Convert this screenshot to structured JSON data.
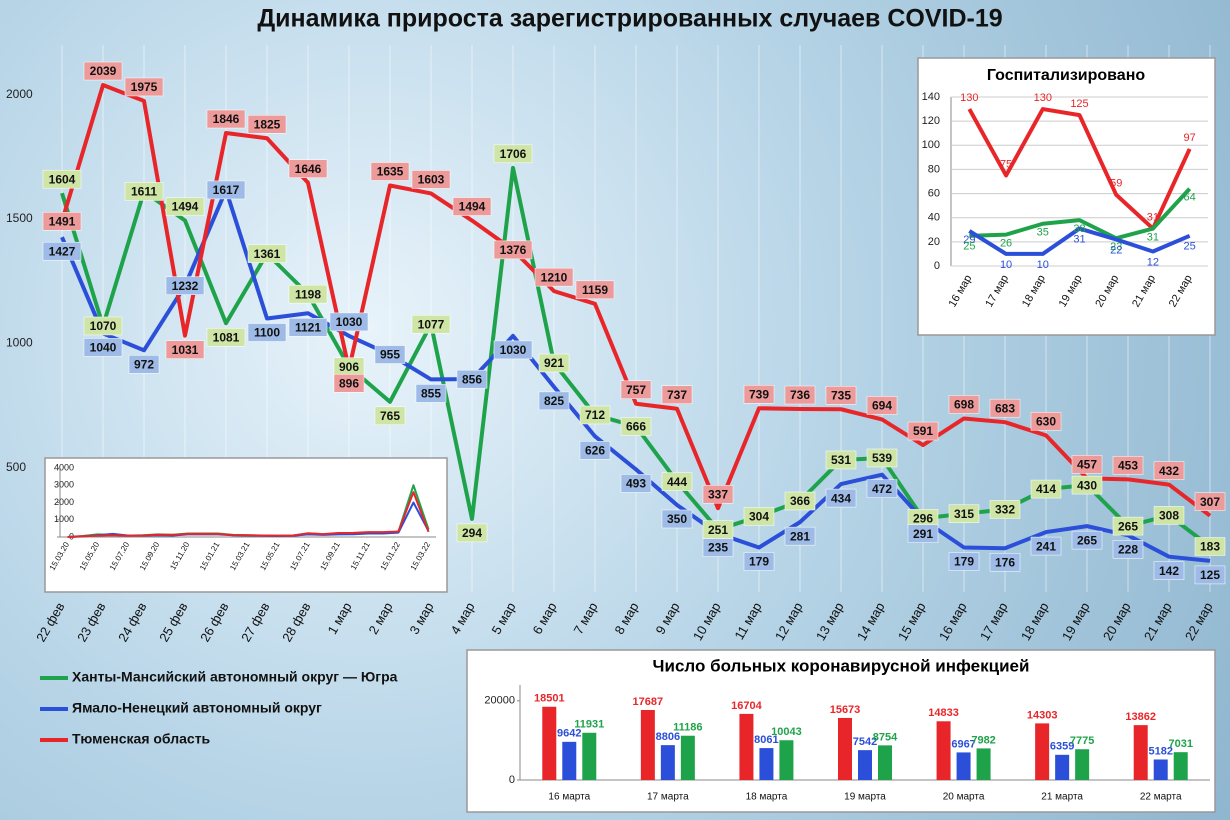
{
  "chart_data": [
    {
      "type": "line",
      "title": "Динамика прироста зарегистрированных случаев COVID-19",
      "categories": [
        "22 фев",
        "23 фев",
        "24 фев",
        "25 фев",
        "26 фев",
        "27 фев",
        "28 фев",
        "1 мар",
        "2 мар",
        "3 мар",
        "4 мар",
        "5 мар",
        "6 мар",
        "7 мар",
        "8 мар",
        "9 мар",
        "10 мар",
        "11 мар",
        "12 мар",
        "13 мар",
        "14 мар",
        "15 мар",
        "16 мар",
        "17 мар",
        "18 мар",
        "19 мар",
        "20 мар",
        "21 мар",
        "22 мар"
      ],
      "series": [
        {
          "name": "Ханты-Мансийский автономный округ — Югра",
          "color": "#1fa34a",
          "values": [
            1604,
            1070,
            1611,
            1494,
            1081,
            1361,
            1198,
            906,
            765,
            1077,
            294,
            1706,
            921,
            712,
            666,
            444,
            251,
            304,
            366,
            531,
            539,
            296,
            315,
            332,
            414,
            430,
            265,
            308,
            183
          ]
        },
        {
          "name": "Ямало-Ненецкий автономный округ",
          "color": "#2b4fd8",
          "values": [
            1427,
            1040,
            972,
            1232,
            1617,
            1100,
            1121,
            1030,
            955,
            855,
            856,
            1030,
            825,
            626,
            493,
            350,
            235,
            179,
            281,
            434,
            472,
            291,
            179,
            176,
            241,
            265,
            228,
            142,
            125
          ]
        },
        {
          "name": "Тюменская область",
          "color": "#e8262a",
          "values": [
            1491,
            2039,
            1975,
            1031,
            1846,
            1825,
            1646,
            896,
            1635,
            1603,
            1494,
            1376,
            1210,
            1159,
            757,
            737,
            337,
            739,
            736,
            735,
            694,
            591,
            698,
            683,
            630,
            457,
            453,
            432,
            307
          ]
        }
      ],
      "ylim": [
        0,
        2200
      ],
      "yticks": [
        500,
        1000,
        1500,
        2000
      ],
      "grid": "x",
      "legend": "lower-left"
    },
    {
      "type": "line",
      "categories": [
        "15.03.20",
        null,
        "15.05.20",
        null,
        "15.07.20",
        null,
        "15.09.20",
        null,
        "15.11.20",
        null,
        "15.01.21",
        null,
        "15.03.21",
        null,
        "15.05.21",
        null,
        "15.07.21",
        null,
        "15.09.21",
        null,
        "15.11.21",
        null,
        "15.01.22",
        null,
        "15.03.22"
      ],
      "series": [
        {
          "color": "#1fa34a",
          "values": [
            0,
            60,
            150,
            120,
            80,
            100,
            150,
            130,
            200,
            200,
            200,
            120,
            100,
            80,
            70,
            90,
            200,
            160,
            200,
            200,
            250,
            250,
            300,
            3000,
            450
          ]
        },
        {
          "color": "#2b4fd8",
          "values": [
            0,
            30,
            100,
            180,
            90,
            80,
            100,
            90,
            150,
            160,
            150,
            100,
            90,
            70,
            60,
            70,
            150,
            120,
            150,
            160,
            200,
            200,
            250,
            2000,
            350
          ]
        },
        {
          "color": "#e8262a",
          "values": [
            0,
            40,
            80,
            100,
            70,
            90,
            130,
            120,
            180,
            190,
            180,
            110,
            100,
            90,
            80,
            90,
            220,
            170,
            230,
            240,
            280,
            280,
            320,
            2600,
            300
          ]
        }
      ],
      "ylim": [
        0,
        4000
      ],
      "yticks": [
        0,
        1000,
        2000,
        3000,
        4000
      ]
    },
    {
      "type": "line",
      "title": "Госпитализировано",
      "categories": [
        "16 мар",
        "17 мар",
        "18 мар",
        "19 мар",
        "20 мар",
        "21 мар",
        "22 мар"
      ],
      "series": [
        {
          "color": "#e8262a",
          "values": [
            130,
            75,
            130,
            125,
            59,
            31,
            97
          ]
        },
        {
          "color": "#1fa34a",
          "values": [
            25,
            26,
            35,
            38,
            23,
            31,
            64
          ]
        },
        {
          "color": "#2b4fd8",
          "values": [
            29,
            10,
            10,
            31,
            22,
            12,
            25
          ]
        }
      ],
      "ylim": [
        0,
        140
      ],
      "yticks": [
        0,
        20,
        40,
        60,
        80,
        100,
        120,
        140
      ],
      "grid": "y"
    },
    {
      "type": "bar",
      "title": "Число больных  коронавирусной  инфекцией",
      "categories": [
        "16 марта",
        "17 марта",
        "18 марта",
        "19 марта",
        "20 марта",
        "21 марта",
        "22 марта"
      ],
      "series": [
        {
          "color": "#e8262a",
          "values": [
            18501,
            17687,
            16704,
            15673,
            14833,
            14303,
            13862
          ]
        },
        {
          "color": "#2b4fd8",
          "values": [
            9642,
            8806,
            8061,
            7542,
            6967,
            6359,
            5182
          ]
        },
        {
          "color": "#1fa34a",
          "values": [
            11931,
            11186,
            10043,
            8754,
            7982,
            7775,
            7031
          ]
        }
      ],
      "ylim": [
        0,
        24000
      ],
      "yticks": [
        0,
        20000
      ]
    }
  ]
}
